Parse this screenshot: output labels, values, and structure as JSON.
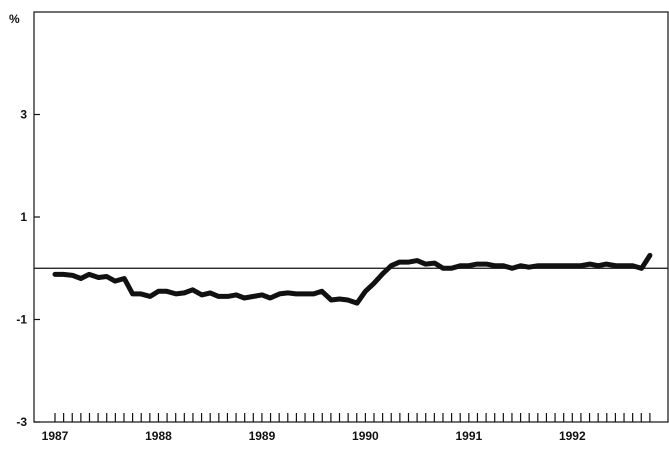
{
  "chart_data": {
    "type": "line",
    "title": "",
    "xlabel": "",
    "ylabel": "%",
    "xlim": [
      1987.0,
      1992.78
    ],
    "ylim": [
      -3,
      5
    ],
    "y_ticks": [
      3,
      1,
      -1,
      -3
    ],
    "y_tick_labels": [
      "3",
      "1",
      "-1",
      "-3"
    ],
    "x_ticks": [
      1987,
      1988,
      1989,
      1990,
      1991,
      1992
    ],
    "x_tick_labels": [
      "1987",
      "1988",
      "1989",
      "1990",
      "1991",
      "1992"
    ],
    "minor_ticks_per_year": 12,
    "reference_line_y": 0,
    "grid": false,
    "legend": "none",
    "line_color": "#111111",
    "series": [
      {
        "x": [
          1987.0,
          1987.08,
          1987.17,
          1987.25,
          1987.33,
          1987.42,
          1987.5,
          1987.58,
          1987.67,
          1987.75,
          1987.83,
          1987.92,
          1988.0,
          1988.08,
          1988.17,
          1988.25,
          1988.33,
          1988.42,
          1988.5,
          1988.58,
          1988.67,
          1988.75,
          1988.83,
          1988.92,
          1989.0,
          1989.08,
          1989.17,
          1989.25,
          1989.33,
          1989.42,
          1989.5,
          1989.58,
          1989.67,
          1989.75,
          1989.83,
          1989.92,
          1990.0,
          1990.08,
          1990.17,
          1990.25,
          1990.33,
          1990.42,
          1990.5,
          1990.58,
          1990.67,
          1990.75,
          1990.83,
          1990.92,
          1991.0,
          1991.08,
          1991.17,
          1991.25,
          1991.33,
          1991.42,
          1991.5,
          1991.58,
          1991.67,
          1991.75,
          1991.83,
          1991.92,
          1992.0,
          1992.08,
          1992.17,
          1992.25,
          1992.33,
          1992.42,
          1992.5,
          1992.58,
          1992.67,
          1992.75
        ],
        "values": [
          -0.12,
          -0.12,
          -0.14,
          -0.2,
          -0.12,
          -0.18,
          -0.16,
          -0.25,
          -0.2,
          -0.5,
          -0.5,
          -0.55,
          -0.45,
          -0.45,
          -0.5,
          -0.48,
          -0.42,
          -0.52,
          -0.48,
          -0.55,
          -0.55,
          -0.52,
          -0.58,
          -0.55,
          -0.52,
          -0.58,
          -0.5,
          -0.48,
          -0.5,
          -0.5,
          -0.5,
          -0.45,
          -0.62,
          -0.6,
          -0.62,
          -0.68,
          -0.45,
          -0.3,
          -0.1,
          0.05,
          0.12,
          0.12,
          0.15,
          0.08,
          0.1,
          0.0,
          0.0,
          0.05,
          0.05,
          0.08,
          0.08,
          0.05,
          0.05,
          0.0,
          0.05,
          0.02,
          0.05,
          0.05,
          0.05,
          0.05,
          0.05,
          0.05,
          0.08,
          0.05,
          0.08,
          0.05,
          0.05,
          0.05,
          0.0,
          0.25
        ]
      }
    ]
  }
}
